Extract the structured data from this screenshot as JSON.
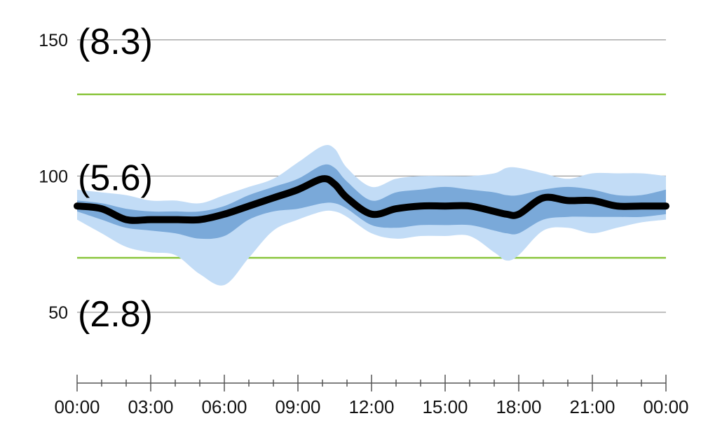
{
  "chart_data": {
    "type": "area",
    "title": "",
    "xlabel": "",
    "ylabel": "",
    "x_ticks": [
      "00:00",
      "03:00",
      "06:00",
      "09:00",
      "12:00",
      "15:00",
      "18:00",
      "21:00",
      "00:00"
    ],
    "xlim_hours": [
      0,
      24
    ],
    "ylim": [
      24,
      160
    ],
    "y_ticks": [
      {
        "value": 150,
        "label": "150",
        "alt_label": "(8.3)"
      },
      {
        "value": 100,
        "label": "100",
        "alt_label": "(5.6)"
      },
      {
        "value": 50,
        "label": "50",
        "alt_label": "(2.8)"
      }
    ],
    "target_range": [
      70,
      130
    ],
    "colors": {
      "median": "#000000",
      "inner_band": "#7aa9d9",
      "outer_band": "#c2dcf6",
      "target_lines": "#8cc63f",
      "grid": "#999999"
    },
    "hours": [
      0,
      1,
      2,
      3,
      4,
      5,
      6,
      7,
      8,
      9,
      10,
      10.5,
      11,
      12,
      13,
      14,
      15,
      16,
      17,
      17.5,
      18,
      19,
      20,
      21,
      22,
      23,
      24
    ],
    "median": [
      89,
      88,
      84,
      84,
      84,
      84,
      86,
      89,
      92,
      95,
      99,
      97,
      92,
      86,
      88,
      89,
      89,
      89,
      87,
      86,
      86,
      92,
      91,
      91,
      89,
      89,
      89
    ],
    "p25": [
      87,
      84,
      81,
      80,
      79,
      77,
      78,
      84,
      87,
      88,
      90,
      90,
      88,
      82,
      81,
      82,
      82,
      82,
      80,
      79,
      79,
      84,
      85,
      85,
      85,
      85,
      86
    ],
    "p75": [
      91,
      90,
      88,
      87,
      87,
      87,
      89,
      93,
      96,
      99,
      104,
      103,
      98,
      91,
      94,
      95,
      96,
      95,
      94,
      93,
      93,
      95,
      96,
      95,
      93,
      93,
      95
    ],
    "p10": [
      84,
      79,
      74,
      72,
      71,
      64,
      60,
      70,
      80,
      84,
      87,
      87,
      85,
      79,
      77,
      78,
      78,
      78,
      72,
      69,
      71,
      80,
      81,
      79,
      81,
      83,
      84
    ],
    "p90": [
      95,
      94,
      93,
      91,
      91,
      90,
      93,
      96,
      99,
      105,
      111,
      110,
      103,
      96,
      99,
      100,
      100,
      100,
      101,
      103,
      103,
      101,
      99,
      101,
      101,
      101,
      100
    ]
  }
}
